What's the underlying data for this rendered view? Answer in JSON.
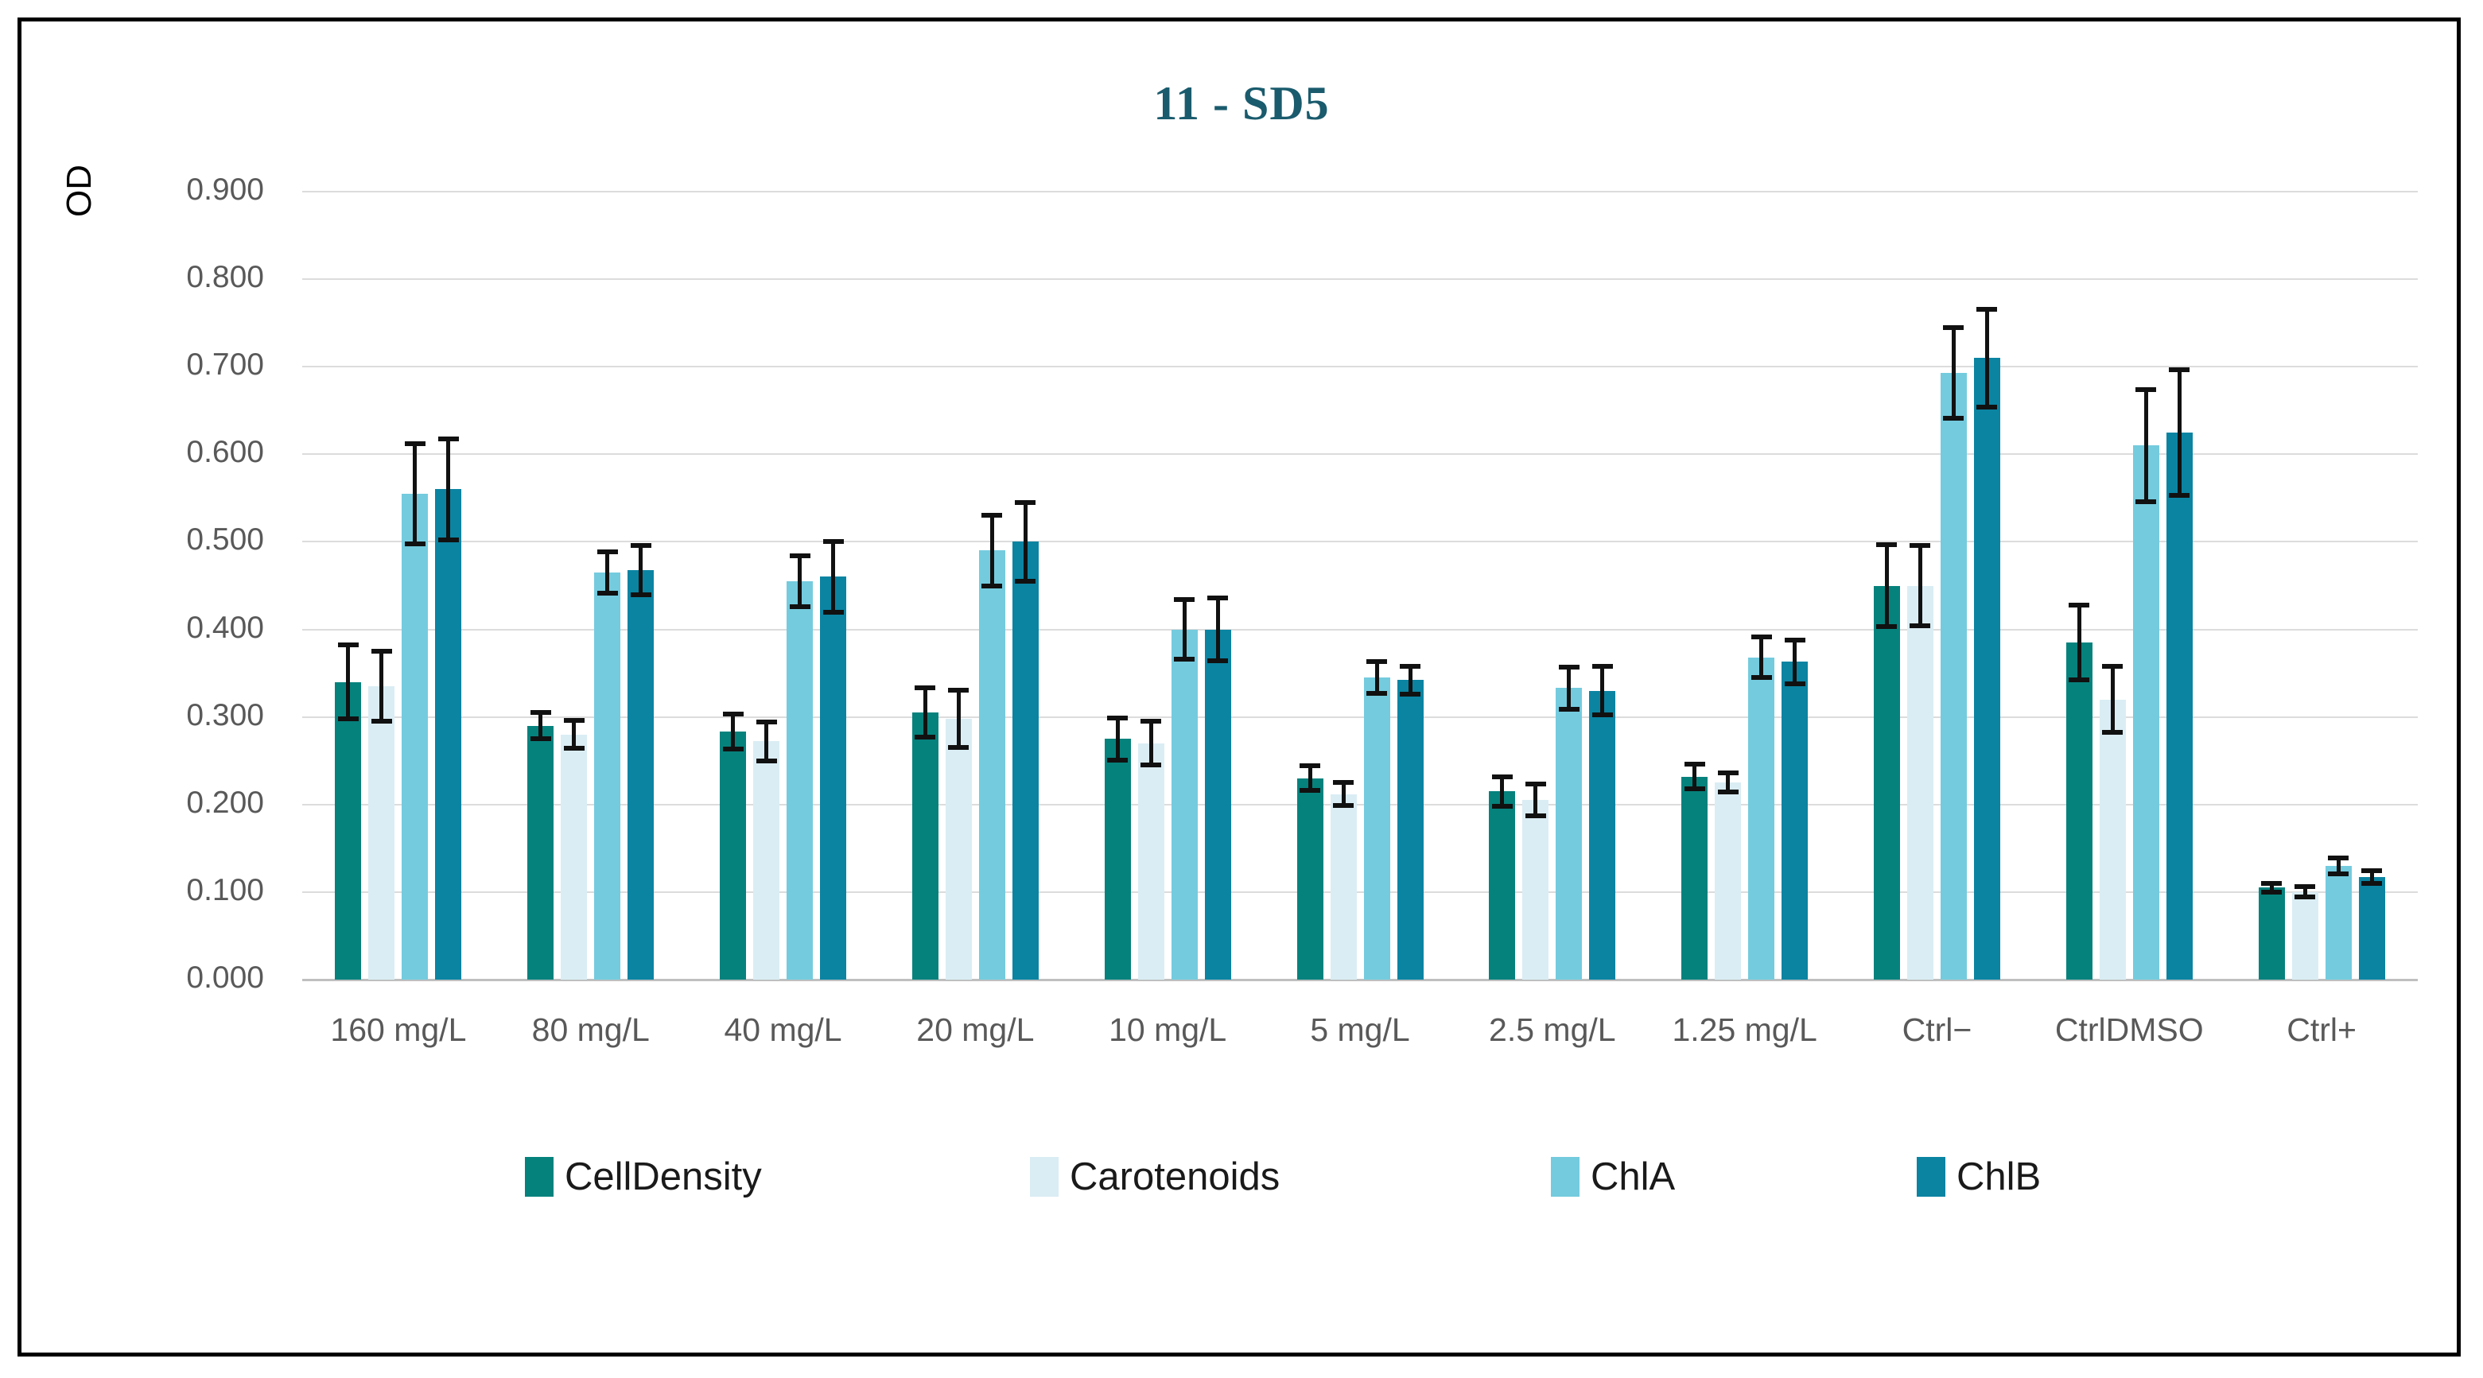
{
  "title": "11 - SD5",
  "y_axis_title": "OD",
  "chart_data": {
    "type": "bar",
    "title": "11 - SD5",
    "xlabel": "",
    "ylabel": "OD",
    "ylim": [
      0.0,
      0.9
    ],
    "grid": true,
    "legend_position": "bottom",
    "y_ticks": [
      "0.000",
      "0.100",
      "0.200",
      "0.300",
      "0.400",
      "0.500",
      "0.600",
      "0.700",
      "0.800",
      "0.900"
    ],
    "y_tick_values": [
      0.0,
      0.1,
      0.2,
      0.3,
      0.4,
      0.5,
      0.6,
      0.7,
      0.8,
      0.9
    ],
    "categories": [
      "160 mg/L",
      "80 mg/L",
      "40 mg/L",
      "20 mg/L",
      "10 mg/L",
      "5 mg/L",
      "2.5 mg/L",
      "1.25 mg/L",
      "Ctrl−",
      "CtrlDMSO",
      "Ctrl+"
    ],
    "series": [
      {
        "name": "CellDensity",
        "color": "#06827D",
        "values": [
          0.34,
          0.29,
          0.283,
          0.305,
          0.275,
          0.23,
          0.215,
          0.232,
          0.45,
          0.385,
          0.105
        ],
        "errors": [
          0.042,
          0.015,
          0.02,
          0.028,
          0.024,
          0.014,
          0.017,
          0.014,
          0.047,
          0.043,
          0.005
        ]
      },
      {
        "name": "Carotenoids",
        "color": "#DAEDF4",
        "values": [
          0.335,
          0.28,
          0.272,
          0.298,
          0.27,
          0.212,
          0.205,
          0.225,
          0.45,
          0.32,
          0.1
        ],
        "errors": [
          0.04,
          0.016,
          0.022,
          0.033,
          0.025,
          0.013,
          0.018,
          0.011,
          0.046,
          0.038,
          0.006
        ]
      },
      {
        "name": "ChlA",
        "color": "#74CBDE",
        "values": [
          0.555,
          0.465,
          0.455,
          0.49,
          0.4,
          0.345,
          0.333,
          0.368,
          0.693,
          0.61,
          0.13
        ],
        "errors": [
          0.057,
          0.024,
          0.029,
          0.04,
          0.034,
          0.018,
          0.024,
          0.023,
          0.052,
          0.064,
          0.009
        ]
      },
      {
        "name": "ChlB",
        "color": "#0B84A2",
        "values": [
          0.56,
          0.468,
          0.46,
          0.5,
          0.4,
          0.342,
          0.33,
          0.363,
          0.71,
          0.625,
          0.117
        ],
        "errors": [
          0.058,
          0.028,
          0.04,
          0.045,
          0.036,
          0.016,
          0.028,
          0.025,
          0.056,
          0.072,
          0.007
        ]
      }
    ]
  },
  "colors": {
    "title": "#1A5B6D",
    "gridline": "#DCDCDC",
    "axis_line": "#BFBFBF",
    "tick_label": "#595959",
    "error_bar": "#111111",
    "frame_border": "#000000"
  }
}
